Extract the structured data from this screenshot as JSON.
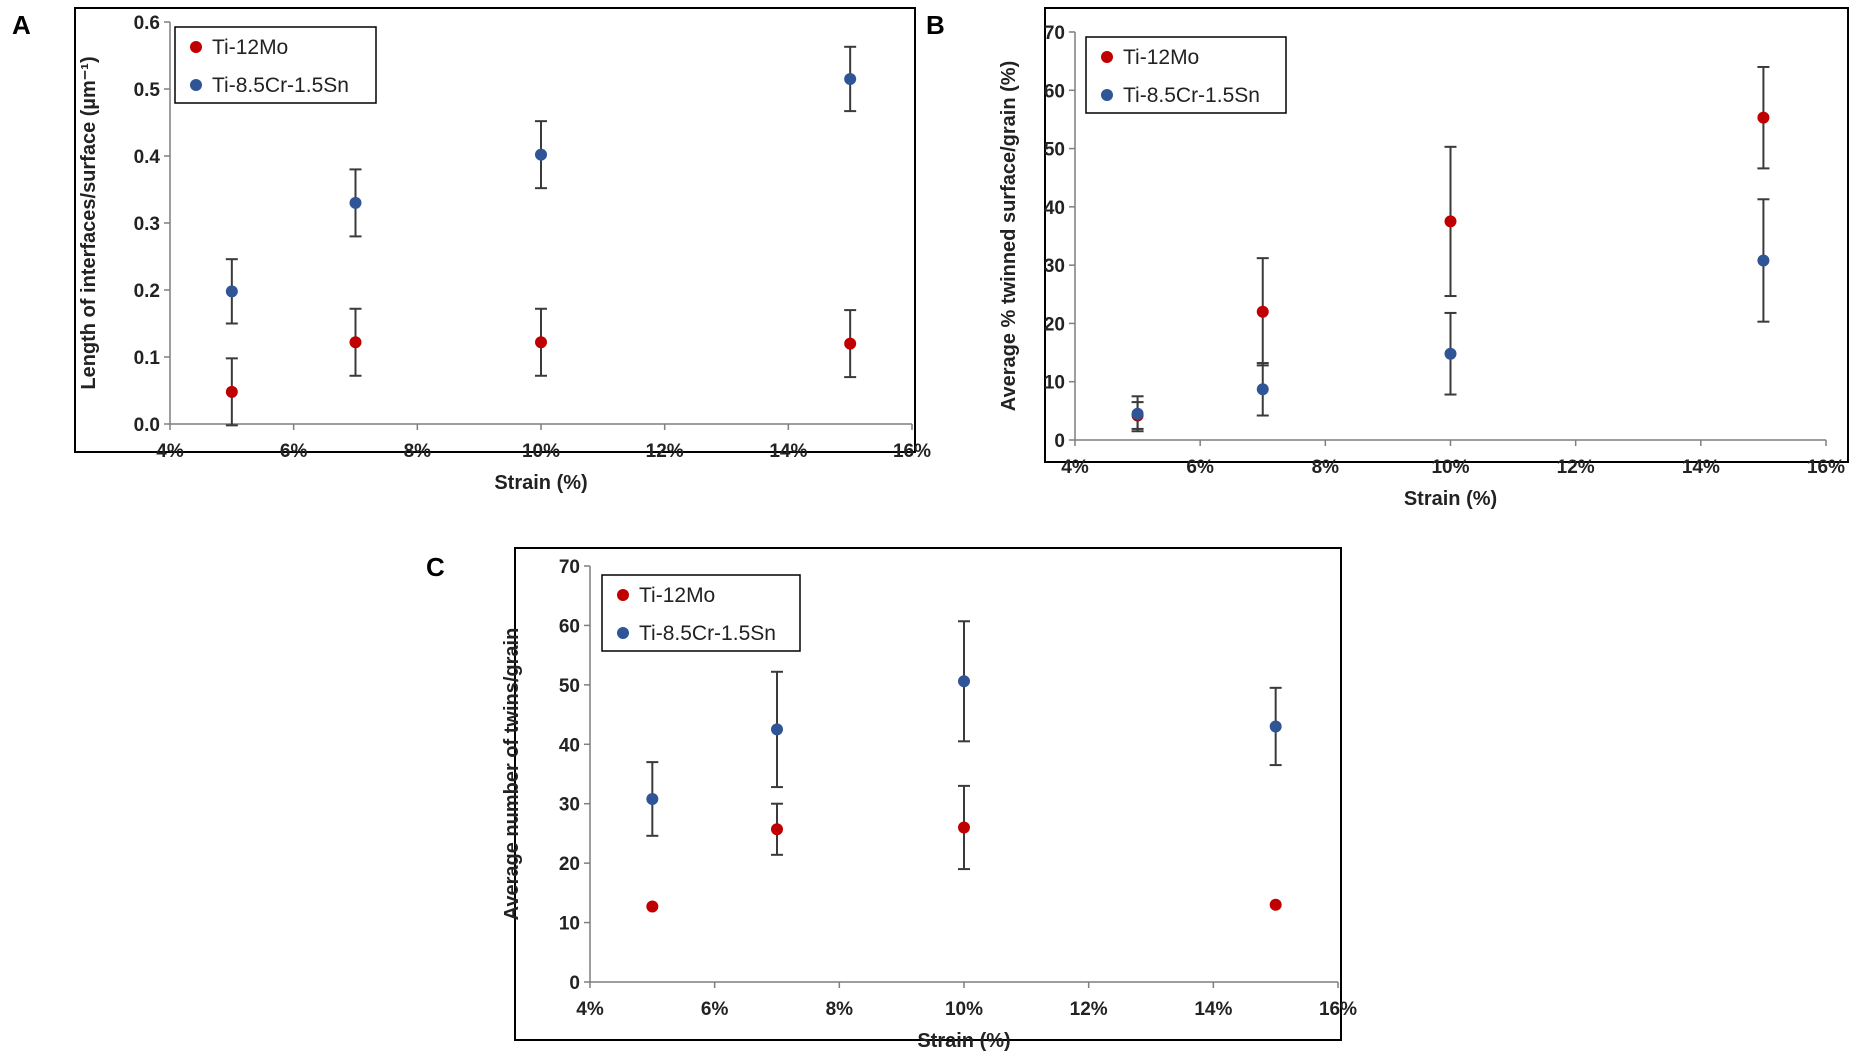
{
  "colors": {
    "red": "#c00000",
    "blue": "#2f5597"
  },
  "chart_data": [
    {
      "panel_label": "A",
      "type": "scatter",
      "xlabel": "Strain (%)",
      "ylabel": "Length of interfaces/surface (µm⁻¹)",
      "xlim": [
        4,
        16
      ],
      "ylim": [
        0,
        0.6
      ],
      "xticks": [
        4,
        6,
        8,
        10,
        12,
        14,
        16
      ],
      "xtick_labels": [
        "4%",
        "6%",
        "8%",
        "10%",
        "12%",
        "14%",
        "16%"
      ],
      "yticks": [
        0,
        0.1,
        0.2,
        0.3,
        0.4,
        0.5,
        0.6
      ],
      "ytick_labels": [
        "0.0",
        "0.1",
        "0.2",
        "0.3",
        "0.4",
        "0.5",
        "0.6"
      ],
      "legend": "top-left",
      "series": [
        {
          "name": "Ti-12Mo",
          "color": "red",
          "x": [
            5,
            7,
            10,
            15
          ],
          "y": [
            0.048,
            0.122,
            0.122,
            0.12
          ],
          "err": [
            0.05,
            0.05,
            0.05,
            0.05
          ]
        },
        {
          "name": "Ti-8.5Cr-1.5Sn",
          "color": "blue",
          "x": [
            5,
            7,
            10,
            15
          ],
          "y": [
            0.198,
            0.33,
            0.402,
            0.515
          ],
          "err": [
            0.048,
            0.05,
            0.05,
            0.048
          ]
        }
      ]
    },
    {
      "panel_label": "B",
      "type": "scatter",
      "xlabel": "Strain (%)",
      "ylabel": "Average % twinned surface/grain (%)",
      "xlim": [
        4,
        16
      ],
      "ylim": [
        0,
        70
      ],
      "xticks": [
        4,
        6,
        8,
        10,
        12,
        14,
        16
      ],
      "xtick_labels": [
        "4%",
        "6%",
        "8%",
        "10%",
        "12%",
        "14%",
        "16%"
      ],
      "yticks": [
        0,
        10,
        20,
        30,
        40,
        50,
        60,
        70
      ],
      "ytick_labels": [
        "0",
        "10",
        "20",
        "30",
        "40",
        "50",
        "60",
        "70"
      ],
      "legend": "top-left",
      "series": [
        {
          "name": "Ti-12Mo",
          "color": "red",
          "x": [
            5,
            7,
            10,
            15
          ],
          "y": [
            4.2,
            22,
            37.5,
            55.3
          ],
          "err": [
            2.3,
            9.2,
            12.8,
            8.7
          ]
        },
        {
          "name": "Ti-8.5Cr-1.5Sn",
          "color": "blue",
          "x": [
            5,
            7,
            10,
            15
          ],
          "y": [
            4.5,
            8.7,
            14.8,
            30.8
          ],
          "err": [
            3,
            4.5,
            7,
            10.5
          ]
        }
      ]
    },
    {
      "panel_label": "C",
      "type": "scatter",
      "xlabel": "Strain (%)",
      "ylabel": "Average number of twins/grain",
      "xlim": [
        4,
        16
      ],
      "ylim": [
        0,
        70
      ],
      "xticks": [
        4,
        6,
        8,
        10,
        12,
        14,
        16
      ],
      "xtick_labels": [
        "4%",
        "6%",
        "8%",
        "10%",
        "12%",
        "14%",
        "16%"
      ],
      "yticks": [
        0,
        10,
        20,
        30,
        40,
        50,
        60,
        70
      ],
      "ytick_labels": [
        "0",
        "10",
        "20",
        "30",
        "40",
        "50",
        "60",
        "70"
      ],
      "legend": "top-left",
      "series": [
        {
          "name": "Ti-12Mo",
          "color": "red",
          "x": [
            5,
            7,
            10,
            15
          ],
          "y": [
            12.7,
            25.7,
            26,
            13
          ],
          "err": [
            0,
            4.3,
            7,
            0
          ]
        },
        {
          "name": "Ti-8.5Cr-1.5Sn",
          "color": "blue",
          "x": [
            5,
            7,
            10,
            15
          ],
          "y": [
            30.8,
            42.5,
            50.6,
            43
          ],
          "err": [
            6.2,
            9.7,
            10.1,
            6.5
          ]
        }
      ]
    }
  ]
}
